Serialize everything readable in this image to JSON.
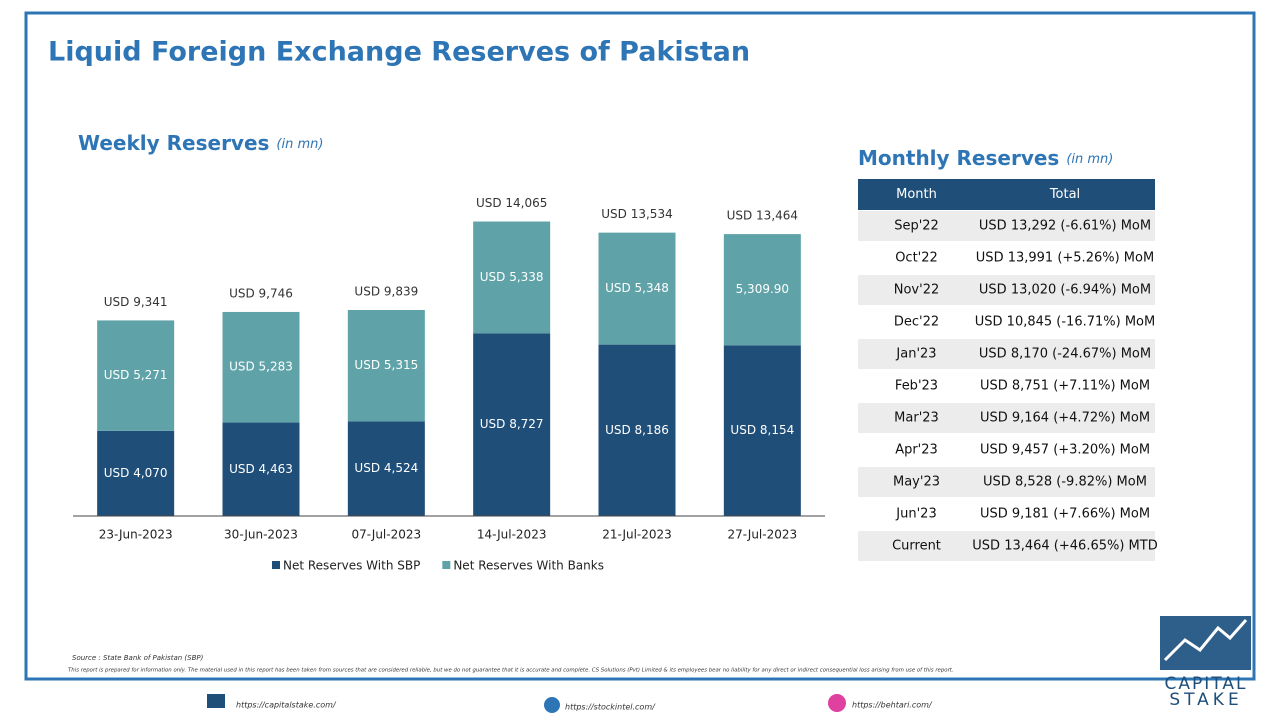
{
  "title": "Liquid Foreign Exchange Reserves of Pakistan",
  "chart_data": {
    "type": "stacked_bar",
    "title": "Weekly Reserves",
    "subtitle": "(in mn)",
    "categories": [
      "23-Jun-2023",
      "30-Jun-2023",
      "07-Jul-2023",
      "14-Jul-2023",
      "21-Jul-2023",
      "27-Jul-2023"
    ],
    "series": [
      {
        "name": "Net Reserves With SBP",
        "color": "#1f4e79",
        "values": [
          4070,
          4463,
          4524,
          8727,
          8186,
          8154
        ],
        "value_labels": [
          "USD 4,070",
          "USD 4,463",
          "USD 4,524",
          "USD 8,727",
          "USD 8,186",
          "USD 8,154"
        ]
      },
      {
        "name": "Net Reserves With Banks",
        "color": "#5fa3a8",
        "values": [
          5271,
          5283,
          5315,
          5338,
          5348,
          5309.9
        ],
        "value_labels": [
          "USD 5,271",
          "USD 5,283",
          "USD 5,315",
          "USD 5,338",
          "USD 5,348",
          "5,309.90"
        ]
      }
    ],
    "totals": [
      9341,
      9746,
      9839,
      14065,
      13534,
      13464
    ],
    "total_labels": [
      "USD 9,341",
      "USD 9,746",
      "USD 9,839",
      "USD 14,065",
      "USD 13,534",
      "USD 13,464"
    ],
    "ylim": [
      0,
      16000
    ],
    "legend": "bottom"
  },
  "table": {
    "title": "Monthly Reserves",
    "subtitle": "(in mn)",
    "header": [
      "Month",
      "Total"
    ],
    "rows": [
      [
        "Sep'22",
        "USD 13,292 (-6.61%) MoM"
      ],
      [
        "Oct'22",
        "USD 13,991 (+5.26%) MoM"
      ],
      [
        "Nov'22",
        "USD 13,020 (-6.94%) MoM"
      ],
      [
        "Dec'22",
        "USD 10,845 (-16.71%) MoM"
      ],
      [
        "Jan'23",
        "USD 8,170 (-24.67%) MoM"
      ],
      [
        "Feb'23",
        "USD 8,751 (+7.11%) MoM"
      ],
      [
        "Mar'23",
        "USD 9,164 (+4.72%) MoM"
      ],
      [
        "Apr'23",
        "USD 9,457 (+3.20%) MoM"
      ],
      [
        "May'23",
        "USD 8,528 (-9.82%) MoM"
      ],
      [
        "Jun'23",
        "USD 9,181 (+7.66%) MoM"
      ],
      [
        "Current",
        "USD 13,464 (+46.65%) MTD"
      ]
    ]
  },
  "source": "Source : State Bank of Pakistan (SBP)",
  "disclaimer": "This report is prepared for information only. The material used in this report has been taken from sources that are considered reliable, but we do not guarantee that it is accurate and complete. CS Solutions (Pvt) Limited & its employees bear no liability for any direct or indirect consequential loss arising from use of this report.",
  "links": [
    "https://capitalstake.com/",
    "https://stockintel.com/",
    "https://behtari.com/"
  ],
  "logo": [
    "CAPITAL",
    "STAKE"
  ]
}
